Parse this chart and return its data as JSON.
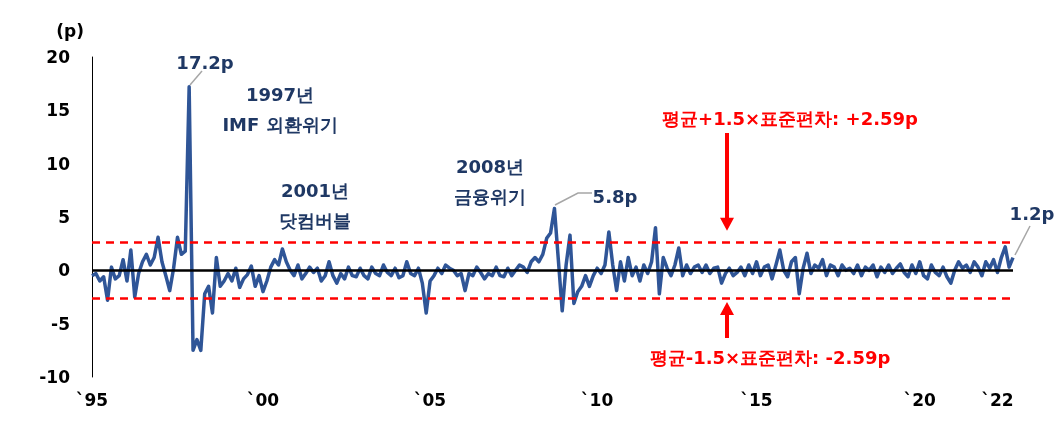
{
  "chart_data": {
    "type": "line",
    "ylabel": "(p)",
    "categories": [
      "`95",
      null,
      null,
      null,
      null,
      null,
      null,
      null,
      null,
      null,
      null,
      null,
      null,
      null,
      null,
      null,
      null,
      null,
      null,
      null,
      null,
      null,
      null,
      null,
      null,
      null,
      null,
      null,
      null,
      null,
      null,
      null,
      null,
      null,
      null,
      null,
      null,
      null,
      null,
      null,
      null,
      null,
      null,
      null,
      "`00",
      null,
      null,
      null,
      null,
      null,
      null,
      null,
      null,
      null,
      null,
      null,
      null,
      null,
      null,
      null,
      null,
      null,
      null,
      null,
      null,
      null,
      null,
      null,
      null,
      null,
      null,
      null,
      null,
      null,
      null,
      null,
      null,
      null,
      null,
      null,
      null,
      null,
      null,
      null,
      null,
      null,
      null,
      "`05",
      null,
      null,
      null,
      null,
      null,
      null,
      null,
      null,
      null,
      null,
      null,
      null,
      null,
      null,
      null,
      null,
      null,
      null,
      null,
      null,
      null,
      null,
      null,
      null,
      null,
      null,
      null,
      null,
      null,
      null,
      null,
      null,
      null,
      null,
      null,
      null,
      null,
      null,
      null,
      null,
      null,
      null,
      "`10",
      null,
      null,
      null,
      null,
      null,
      null,
      null,
      null,
      null,
      null,
      null,
      null,
      null,
      null,
      null,
      null,
      null,
      null,
      null,
      null,
      null,
      null,
      null,
      null,
      null,
      null,
      null,
      null,
      null,
      null,
      null,
      null,
      null,
      null,
      null,
      null,
      null,
      null,
      null,
      null,
      "`15",
      null,
      null,
      null,
      null,
      null,
      null,
      null,
      null,
      null,
      null,
      null,
      null,
      null,
      null,
      null,
      null,
      null,
      null,
      null,
      null,
      null,
      null,
      null,
      null,
      null,
      null,
      null,
      null,
      null,
      null,
      null,
      null,
      null,
      null,
      null,
      null,
      null,
      null,
      null,
      null,
      null,
      "`20",
      null,
      null,
      null,
      null,
      null,
      null,
      null,
      null,
      null,
      null,
      null,
      null,
      null,
      null,
      null,
      null,
      null,
      null,
      null,
      "`22",
      null,
      null,
      null,
      null
    ],
    "ylim": [
      -10,
      20
    ],
    "yticks": [
      -10,
      -5,
      0,
      5,
      10,
      15,
      20
    ],
    "grid": false,
    "marker": "none",
    "series": [
      {
        "color": "#2f5597",
        "values": [
          -0.5,
          -0.3,
          -1.0,
          -0.6,
          -2.8,
          0.3,
          -0.8,
          -0.5,
          1.0,
          -1.0,
          1.9,
          -2.5,
          -0.3,
          0.8,
          1.5,
          0.5,
          1.2,
          3.1,
          0.8,
          -0.5,
          -1.9,
          0.2,
          3.1,
          1.5,
          1.8,
          17.2,
          -7.5,
          -6.5,
          -7.5,
          -2.2,
          -1.5,
          -4.0,
          1.2,
          -1.5,
          -1.0,
          -0.3,
          -1.0,
          0.2,
          -1.6,
          -0.8,
          -0.4,
          0.4,
          -1.5,
          -0.5,
          -2.0,
          -1.0,
          0.3,
          1.0,
          0.5,
          2.0,
          0.8,
          0.0,
          -0.5,
          0.5,
          -0.8,
          -0.3,
          0.3,
          -0.2,
          0.2,
          -1.0,
          -0.5,
          0.8,
          -0.5,
          -1.2,
          -0.3,
          -0.8,
          0.3,
          -0.5,
          -0.6,
          0.2,
          -0.5,
          -0.8,
          0.3,
          -0.3,
          -0.5,
          0.5,
          -0.2,
          -0.5,
          0.2,
          -0.7,
          -0.5,
          0.8,
          -0.3,
          -0.5,
          0.2,
          -1.2,
          -4.0,
          -1.0,
          -0.5,
          0.2,
          -0.3,
          0.5,
          0.2,
          0.0,
          -0.5,
          -0.3,
          -1.9,
          -0.3,
          -0.5,
          0.3,
          -0.2,
          -0.8,
          -0.3,
          -0.5,
          0.3,
          -0.5,
          -0.6,
          0.2,
          -0.5,
          0.0,
          0.5,
          0.3,
          -0.2,
          0.8,
          1.2,
          0.8,
          1.5,
          3.0,
          3.5,
          5.8,
          1.0,
          -3.8,
          0.5,
          3.3,
          -3.1,
          -2.0,
          -1.5,
          -0.5,
          -1.5,
          -0.5,
          0.2,
          -0.3,
          0.5,
          3.6,
          0.5,
          -1.9,
          0.8,
          -1.0,
          1.2,
          -0.5,
          0.3,
          -1.0,
          0.5,
          -0.3,
          0.8,
          4.0,
          -2.2,
          1.2,
          0.2,
          -0.5,
          0.5,
          2.1,
          -0.5,
          0.5,
          -0.3,
          0.3,
          0.5,
          -0.2,
          0.5,
          -0.3,
          0.2,
          0.3,
          -1.2,
          -0.3,
          0.2,
          -0.5,
          -0.2,
          0.3,
          -0.5,
          0.5,
          -0.3,
          0.8,
          -0.5,
          0.3,
          0.5,
          -0.8,
          0.5,
          1.9,
          0.0,
          -0.6,
          0.8,
          1.2,
          -2.2,
          0.2,
          1.6,
          -0.3,
          0.5,
          0.2,
          1.0,
          -0.5,
          0.5,
          0.3,
          -0.5,
          0.5,
          0.0,
          0.2,
          -0.3,
          0.5,
          -0.5,
          0.3,
          0.0,
          0.5,
          -0.6,
          0.3,
          -0.2,
          0.5,
          -0.3,
          0.2,
          0.6,
          -0.2,
          -0.6,
          0.5,
          -0.3,
          0.8,
          -0.5,
          -0.8,
          0.5,
          -0.2,
          -0.5,
          0.3,
          -0.6,
          -1.2,
          0.0,
          0.8,
          0.2,
          0.5,
          -0.2,
          0.8,
          0.3,
          -0.5,
          0.8,
          0.2,
          1.0,
          -0.2,
          1.2,
          2.2,
          0.3,
          1.2
        ]
      }
    ],
    "ref_lines": [
      {
        "axis": "y",
        "value": 0,
        "color": "#000000",
        "line_style": "solid"
      },
      {
        "axis": "y",
        "value": 2.59,
        "label": "평균+1.5×표준편차: +2.59p",
        "color": "#ff0000",
        "line_style": "dashed"
      },
      {
        "axis": "y",
        "value": -2.59,
        "label": "평균-1.5×표준편차: -2.59p",
        "color": "#ff0000",
        "line_style": "dashed"
      }
    ],
    "annotations": [
      "17.2p",
      "1997년\nIMF 외환위기",
      "2001년\n닷컴버블",
      "2008년\n금융위기",
      "5.8p",
      "1.2p"
    ]
  }
}
